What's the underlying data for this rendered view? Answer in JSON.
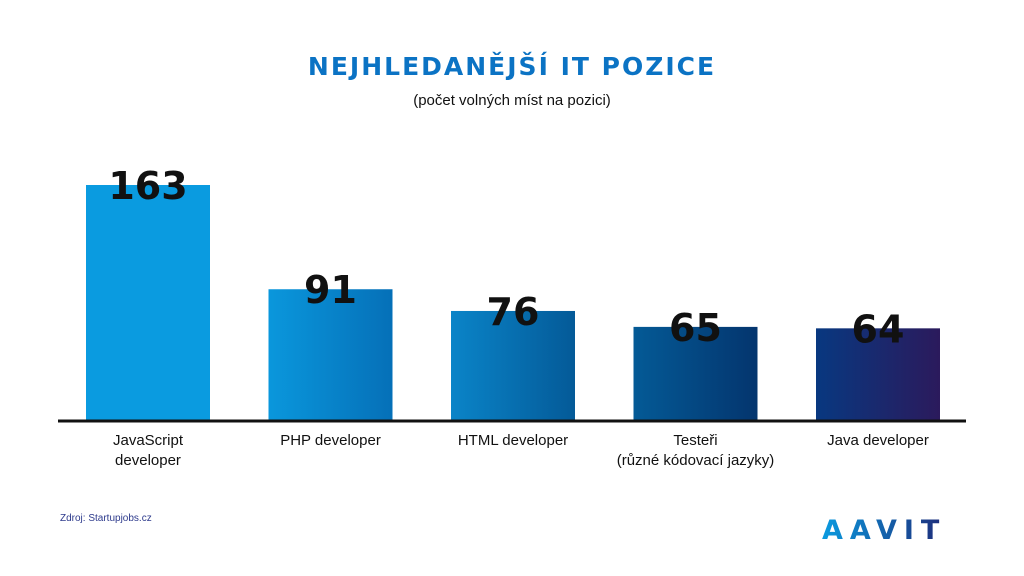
{
  "title": "NEJHLEDANĚJŠÍ IT POZICE",
  "subtitle": "(počet volných míst na pozici)",
  "source": "Zdroj: Startupjobs.cz",
  "logo_text": "AAVIT",
  "colors": {
    "title": "#0b73c4",
    "bars": [
      [
        "#0a9be0",
        "#0a9be0"
      ],
      [
        "#0a97dc",
        "#0570b8"
      ],
      [
        "#0a84c8",
        "#045a98"
      ],
      [
        "#045a96",
        "#04356e"
      ],
      [
        "#083880",
        "#2b1a5c"
      ]
    ],
    "baseline": "#111111",
    "logo_start": "#0a9be0",
    "logo_end": "#1e2a78"
  },
  "chart_data": {
    "type": "bar",
    "categories": [
      [
        "JavaScript",
        "developer"
      ],
      [
        "PHP developer"
      ],
      [
        "HTML developer"
      ],
      [
        "Testeři",
        "(různé kódovací jazyky)"
      ],
      [
        "Java developer"
      ]
    ],
    "values": [
      163,
      91,
      76,
      65,
      64
    ],
    "value_labels": [
      "163",
      "91",
      "76",
      "65",
      "64"
    ],
    "title": "NEJHLEDANĚJŠÍ IT POZICE",
    "subtitle": "(počet volných míst na pozici)",
    "xlabel": "",
    "ylabel": "",
    "ylim": [
      0,
      163
    ],
    "grid": false,
    "legend": "none"
  }
}
